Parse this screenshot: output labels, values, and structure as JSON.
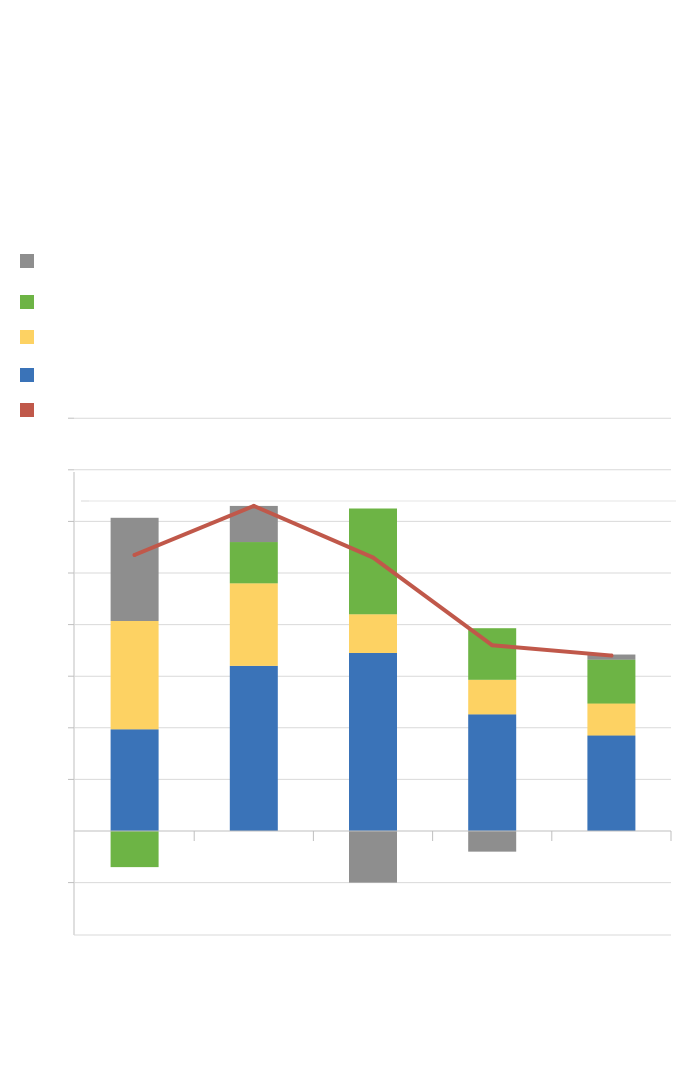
{
  "chart_data": {
    "type": "bar",
    "title": "",
    "xlabel": "",
    "ylabel": "",
    "categories": [
      "",
      "",
      "",
      "",
      ""
    ],
    "ylim": [
      -2,
      8
    ],
    "grid": true,
    "legend_position": "top-left",
    "stacked": true,
    "series": [
      {
        "key": "gray",
        "color": "#8e8e8e",
        "kind": "bar",
        "values": [
          2.0,
          0.7,
          -1.0,
          -0.4,
          0.1
        ]
      },
      {
        "key": "green",
        "color": "#6db445",
        "kind": "bar",
        "values": [
          -0.7,
          0.8,
          2.05,
          1.0,
          0.85
        ]
      },
      {
        "key": "yellow",
        "color": "#fdd263",
        "kind": "bar",
        "values": [
          2.1,
          1.6,
          0.75,
          0.67,
          0.62
        ]
      },
      {
        "key": "blue",
        "color": "#3a73b8",
        "kind": "bar",
        "values": [
          1.97,
          3.2,
          3.45,
          2.26,
          1.85
        ]
      },
      {
        "key": "red",
        "color": "#c0584a",
        "kind": "line",
        "values": [
          5.35,
          6.3,
          5.3,
          3.6,
          3.4
        ]
      }
    ]
  }
}
